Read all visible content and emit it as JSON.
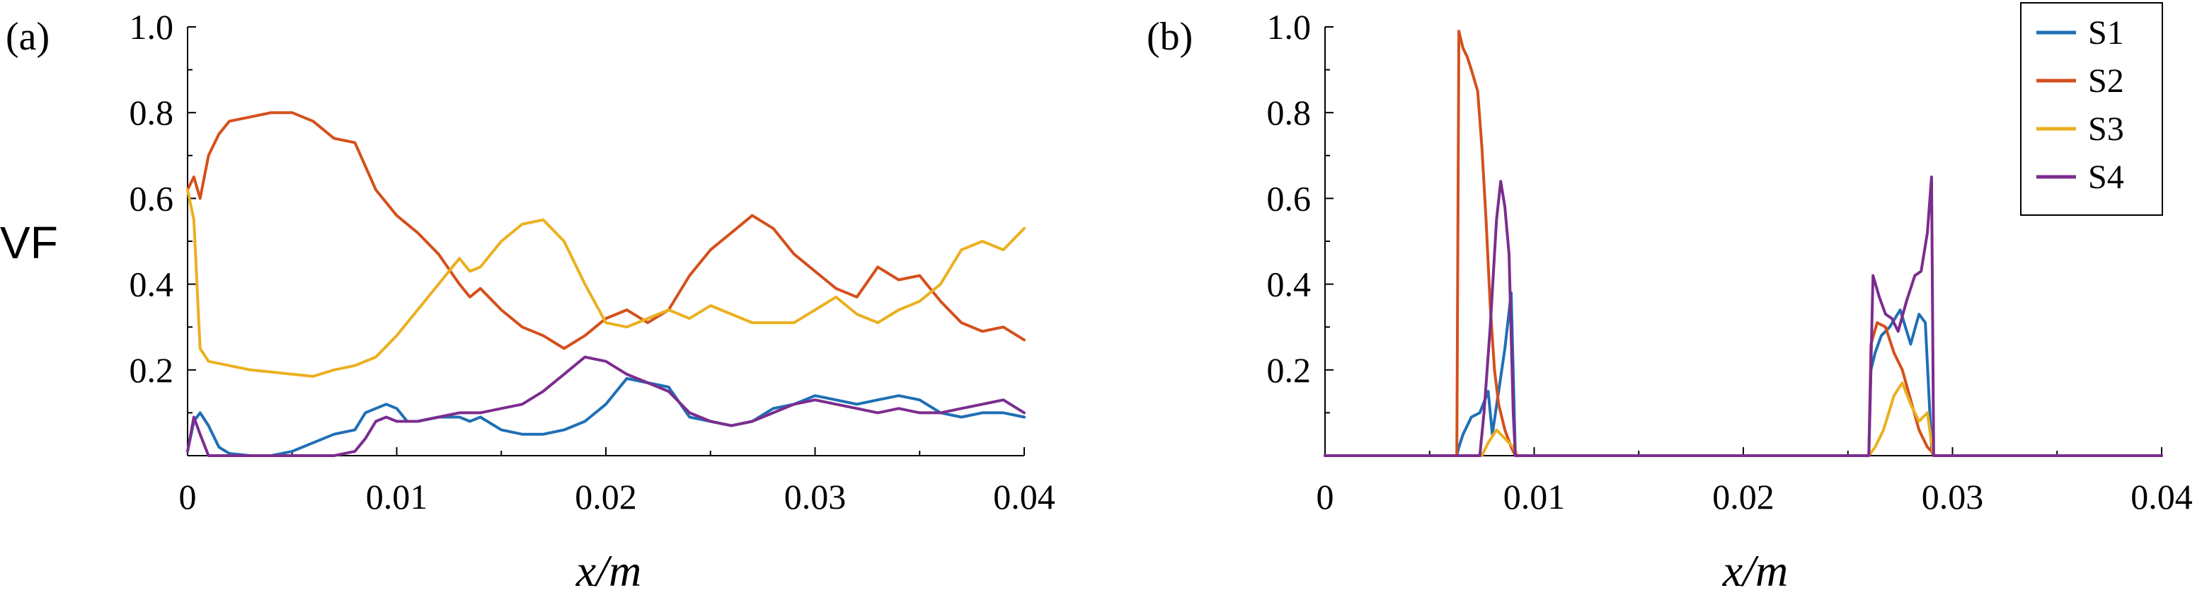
{
  "colors": {
    "S1": "#1f6fb5",
    "S2": "#d4501c",
    "S3": "#ebb020",
    "S4": "#7b2d8e",
    "axis": "#000000"
  },
  "chart_data": [
    {
      "panel_label": "(a)",
      "type": "line",
      "xlabel": "x/m",
      "ylabel": "VF",
      "xlim": [
        0,
        0.04
      ],
      "ylim": [
        0,
        1.0
      ],
      "xticks": [
        0,
        0.01,
        0.02,
        0.03,
        0.04
      ],
      "xtick_labels": [
        "0",
        "0.01",
        "0.02",
        "0.03",
        "0.04"
      ],
      "yticks": [
        0.2,
        0.4,
        0.6,
        0.8,
        1.0
      ],
      "ytick_labels": [
        "0.2",
        "0.4",
        "0.6",
        "0.8",
        "1.0"
      ],
      "series": [
        {
          "name": "S1",
          "x": [
            0,
            0.0003,
            0.0006,
            0.001,
            0.0015,
            0.002,
            0.003,
            0.004,
            0.005,
            0.006,
            0.007,
            0.008,
            0.0085,
            0.009,
            0.0095,
            0.01,
            0.0105,
            0.011,
            0.012,
            0.013,
            0.0135,
            0.014,
            0.015,
            0.016,
            0.017,
            0.018,
            0.019,
            0.02,
            0.021,
            0.022,
            0.023,
            0.024,
            0.025,
            0.026,
            0.027,
            0.028,
            0.029,
            0.03,
            0.031,
            0.032,
            0.033,
            0.034,
            0.035,
            0.036,
            0.037,
            0.038,
            0.039,
            0.04
          ],
          "y": [
            0.01,
            0.08,
            0.1,
            0.07,
            0.02,
            0.005,
            0.0,
            0.0,
            0.01,
            0.03,
            0.05,
            0.06,
            0.1,
            0.11,
            0.12,
            0.11,
            0.08,
            0.08,
            0.09,
            0.09,
            0.08,
            0.09,
            0.06,
            0.05,
            0.05,
            0.06,
            0.08,
            0.12,
            0.18,
            0.17,
            0.16,
            0.09,
            0.08,
            0.07,
            0.08,
            0.11,
            0.12,
            0.14,
            0.13,
            0.12,
            0.13,
            0.14,
            0.13,
            0.1,
            0.09,
            0.1,
            0.1,
            0.09
          ]
        },
        {
          "name": "S2",
          "x": [
            0,
            0.0003,
            0.0006,
            0.001,
            0.0015,
            0.002,
            0.003,
            0.004,
            0.005,
            0.006,
            0.007,
            0.008,
            0.009,
            0.01,
            0.011,
            0.012,
            0.013,
            0.0135,
            0.014,
            0.015,
            0.016,
            0.017,
            0.018,
            0.019,
            0.02,
            0.021,
            0.022,
            0.023,
            0.024,
            0.025,
            0.026,
            0.027,
            0.028,
            0.029,
            0.03,
            0.031,
            0.032,
            0.033,
            0.034,
            0.035,
            0.036,
            0.037,
            0.038,
            0.039,
            0.04
          ],
          "y": [
            0.62,
            0.65,
            0.6,
            0.7,
            0.75,
            0.78,
            0.79,
            0.8,
            0.8,
            0.78,
            0.74,
            0.73,
            0.62,
            0.56,
            0.52,
            0.47,
            0.4,
            0.37,
            0.39,
            0.34,
            0.3,
            0.28,
            0.25,
            0.28,
            0.32,
            0.34,
            0.31,
            0.34,
            0.42,
            0.48,
            0.52,
            0.56,
            0.53,
            0.47,
            0.43,
            0.39,
            0.37,
            0.44,
            0.41,
            0.42,
            0.36,
            0.31,
            0.29,
            0.3,
            0.27
          ]
        },
        {
          "name": "S3",
          "x": [
            0,
            0.0003,
            0.0006,
            0.001,
            0.002,
            0.003,
            0.004,
            0.005,
            0.006,
            0.007,
            0.008,
            0.009,
            0.01,
            0.011,
            0.012,
            0.013,
            0.0135,
            0.014,
            0.015,
            0.016,
            0.017,
            0.018,
            0.019,
            0.02,
            0.021,
            0.022,
            0.023,
            0.024,
            0.025,
            0.026,
            0.027,
            0.028,
            0.029,
            0.03,
            0.031,
            0.032,
            0.033,
            0.034,
            0.035,
            0.036,
            0.037,
            0.038,
            0.039,
            0.04
          ],
          "y": [
            0.62,
            0.55,
            0.25,
            0.22,
            0.21,
            0.2,
            0.195,
            0.19,
            0.185,
            0.2,
            0.21,
            0.23,
            0.28,
            0.34,
            0.4,
            0.46,
            0.43,
            0.44,
            0.5,
            0.54,
            0.55,
            0.5,
            0.4,
            0.31,
            0.3,
            0.32,
            0.34,
            0.32,
            0.35,
            0.33,
            0.31,
            0.31,
            0.31,
            0.34,
            0.37,
            0.33,
            0.31,
            0.34,
            0.36,
            0.4,
            0.48,
            0.5,
            0.48,
            0.53
          ]
        },
        {
          "name": "S4",
          "x": [
            0,
            0.0003,
            0.0006,
            0.001,
            0.0015,
            0.002,
            0.003,
            0.004,
            0.005,
            0.006,
            0.007,
            0.008,
            0.0085,
            0.009,
            0.0095,
            0.01,
            0.011,
            0.012,
            0.013,
            0.014,
            0.015,
            0.016,
            0.017,
            0.018,
            0.019,
            0.02,
            0.021,
            0.022,
            0.023,
            0.024,
            0.025,
            0.026,
            0.027,
            0.028,
            0.029,
            0.03,
            0.031,
            0.032,
            0.033,
            0.034,
            0.035,
            0.036,
            0.037,
            0.038,
            0.039,
            0.04
          ],
          "y": [
            0.01,
            0.09,
            0.05,
            0.0,
            0.0,
            0.0,
            0.0,
            0.0,
            0.0,
            0.0,
            0.0,
            0.01,
            0.04,
            0.08,
            0.09,
            0.08,
            0.08,
            0.09,
            0.1,
            0.1,
            0.11,
            0.12,
            0.15,
            0.19,
            0.23,
            0.22,
            0.19,
            0.17,
            0.15,
            0.1,
            0.08,
            0.07,
            0.08,
            0.1,
            0.12,
            0.13,
            0.12,
            0.11,
            0.1,
            0.11,
            0.1,
            0.1,
            0.11,
            0.12,
            0.13,
            0.1
          ]
        }
      ]
    },
    {
      "panel_label": "(b)",
      "type": "line",
      "xlabel": "x/m",
      "ylabel": "",
      "xlim": [
        0,
        0.04
      ],
      "ylim": [
        0,
        1.0
      ],
      "xticks": [
        0,
        0.01,
        0.02,
        0.03,
        0.04
      ],
      "xtick_labels": [
        "0",
        "0.01",
        "0.02",
        "0.03",
        "0.04"
      ],
      "yticks": [
        0.2,
        0.4,
        0.6,
        0.8,
        1.0
      ],
      "ytick_labels": [
        "0.2",
        "0.4",
        "0.6",
        "0.8",
        "1.0"
      ],
      "legend": {
        "position": "top-right",
        "entries": [
          "S1",
          "S2",
          "S3",
          "S4"
        ]
      },
      "series": [
        {
          "name": "S1",
          "x": [
            0,
            0.0063,
            0.0064,
            0.0066,
            0.007,
            0.0074,
            0.0078,
            0.008,
            0.0083,
            0.0086,
            0.0089,
            0.0091,
            0.0093,
            0.026,
            0.0261,
            0.0263,
            0.0266,
            0.027,
            0.0275,
            0.028,
            0.0284,
            0.0287,
            0.029,
            0.0291,
            0.04
          ],
          "y": [
            0,
            0,
            0.02,
            0.05,
            0.09,
            0.1,
            0.15,
            0.05,
            0.15,
            0.25,
            0.38,
            0.0,
            0.0,
            0.0,
            0.2,
            0.24,
            0.28,
            0.3,
            0.34,
            0.26,
            0.33,
            0.31,
            0.02,
            0.0,
            0.0
          ]
        },
        {
          "name": "S2",
          "x": [
            0,
            0.0063,
            0.0064,
            0.0066,
            0.0068,
            0.007,
            0.0073,
            0.0075,
            0.0077,
            0.0079,
            0.0081,
            0.0083,
            0.0086,
            0.0089,
            0.0091,
            0.026,
            0.0261,
            0.0264,
            0.0268,
            0.0272,
            0.0276,
            0.028,
            0.0284,
            0.0288,
            0.029,
            0.0291,
            0.04
          ],
          "y": [
            0,
            0,
            0.99,
            0.95,
            0.93,
            0.9,
            0.85,
            0.72,
            0.55,
            0.35,
            0.2,
            0.12,
            0.06,
            0.02,
            0.0,
            0.0,
            0.26,
            0.31,
            0.3,
            0.24,
            0.2,
            0.13,
            0.06,
            0.02,
            0.01,
            0.0,
            0.0
          ]
        },
        {
          "name": "S3",
          "x": [
            0,
            0.0075,
            0.0078,
            0.0082,
            0.0086,
            0.009,
            0.0092,
            0.026,
            0.0263,
            0.0267,
            0.0272,
            0.0276,
            0.028,
            0.0284,
            0.0288,
            0.029,
            0.0291,
            0.04
          ],
          "y": [
            0,
            0,
            0.03,
            0.06,
            0.04,
            0.02,
            0.0,
            0.0,
            0.02,
            0.06,
            0.14,
            0.17,
            0.12,
            0.08,
            0.1,
            0.03,
            0.0,
            0.0
          ]
        },
        {
          "name": "S4",
          "x": [
            0,
            0.0074,
            0.0076,
            0.0079,
            0.0082,
            0.0084,
            0.0086,
            0.0088,
            0.009,
            0.0091,
            0.026,
            0.0262,
            0.0265,
            0.0268,
            0.0271,
            0.0274,
            0.0278,
            0.0282,
            0.0285,
            0.0288,
            0.029,
            0.0291,
            0.04
          ],
          "y": [
            0,
            0,
            0.1,
            0.3,
            0.55,
            0.64,
            0.58,
            0.47,
            0.1,
            0.0,
            0.0,
            0.42,
            0.37,
            0.33,
            0.32,
            0.29,
            0.36,
            0.42,
            0.43,
            0.52,
            0.65,
            0.0,
            0.0
          ]
        }
      ]
    }
  ]
}
